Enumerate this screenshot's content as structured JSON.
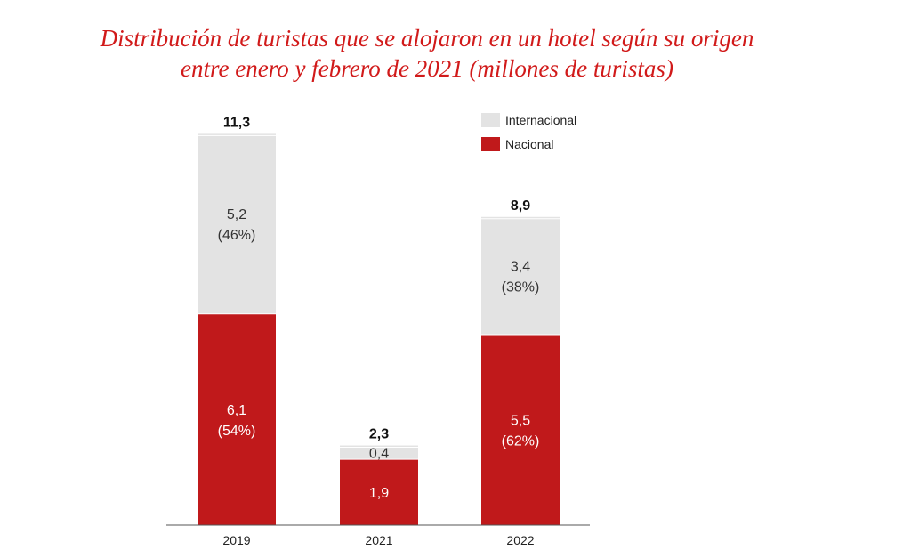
{
  "chart_data": {
    "type": "bar",
    "stacked": true,
    "title_line1": "Distribución de turistas que se alojaron en un hotel según su origen",
    "title_line2": "entre enero y febrero de 2021 (millones de turistas)",
    "categories": [
      "2019",
      "2021",
      "2022"
    ],
    "totals": [
      11.3,
      2.3,
      8.9
    ],
    "total_labels": [
      "11,3",
      "2,3",
      "8,9"
    ],
    "series": [
      {
        "name": "Nacional",
        "color": "#c0191b",
        "values": [
          6.1,
          1.9,
          5.5
        ],
        "labels": [
          [
            "6,1",
            "(54%)"
          ],
          [
            "1,9"
          ],
          [
            "5,5",
            "(62%)"
          ]
        ]
      },
      {
        "name": "Internacional",
        "color": "#e3e3e3",
        "values": [
          5.2,
          0.4,
          3.4
        ],
        "labels": [
          [
            "5,2",
            "(46%)"
          ],
          [
            "0,4"
          ],
          [
            "3,4",
            "(38%)"
          ]
        ]
      }
    ],
    "legend_order": [
      "Internacional",
      "Nacional"
    ],
    "legend_position": "top-right",
    "grid": false
  }
}
